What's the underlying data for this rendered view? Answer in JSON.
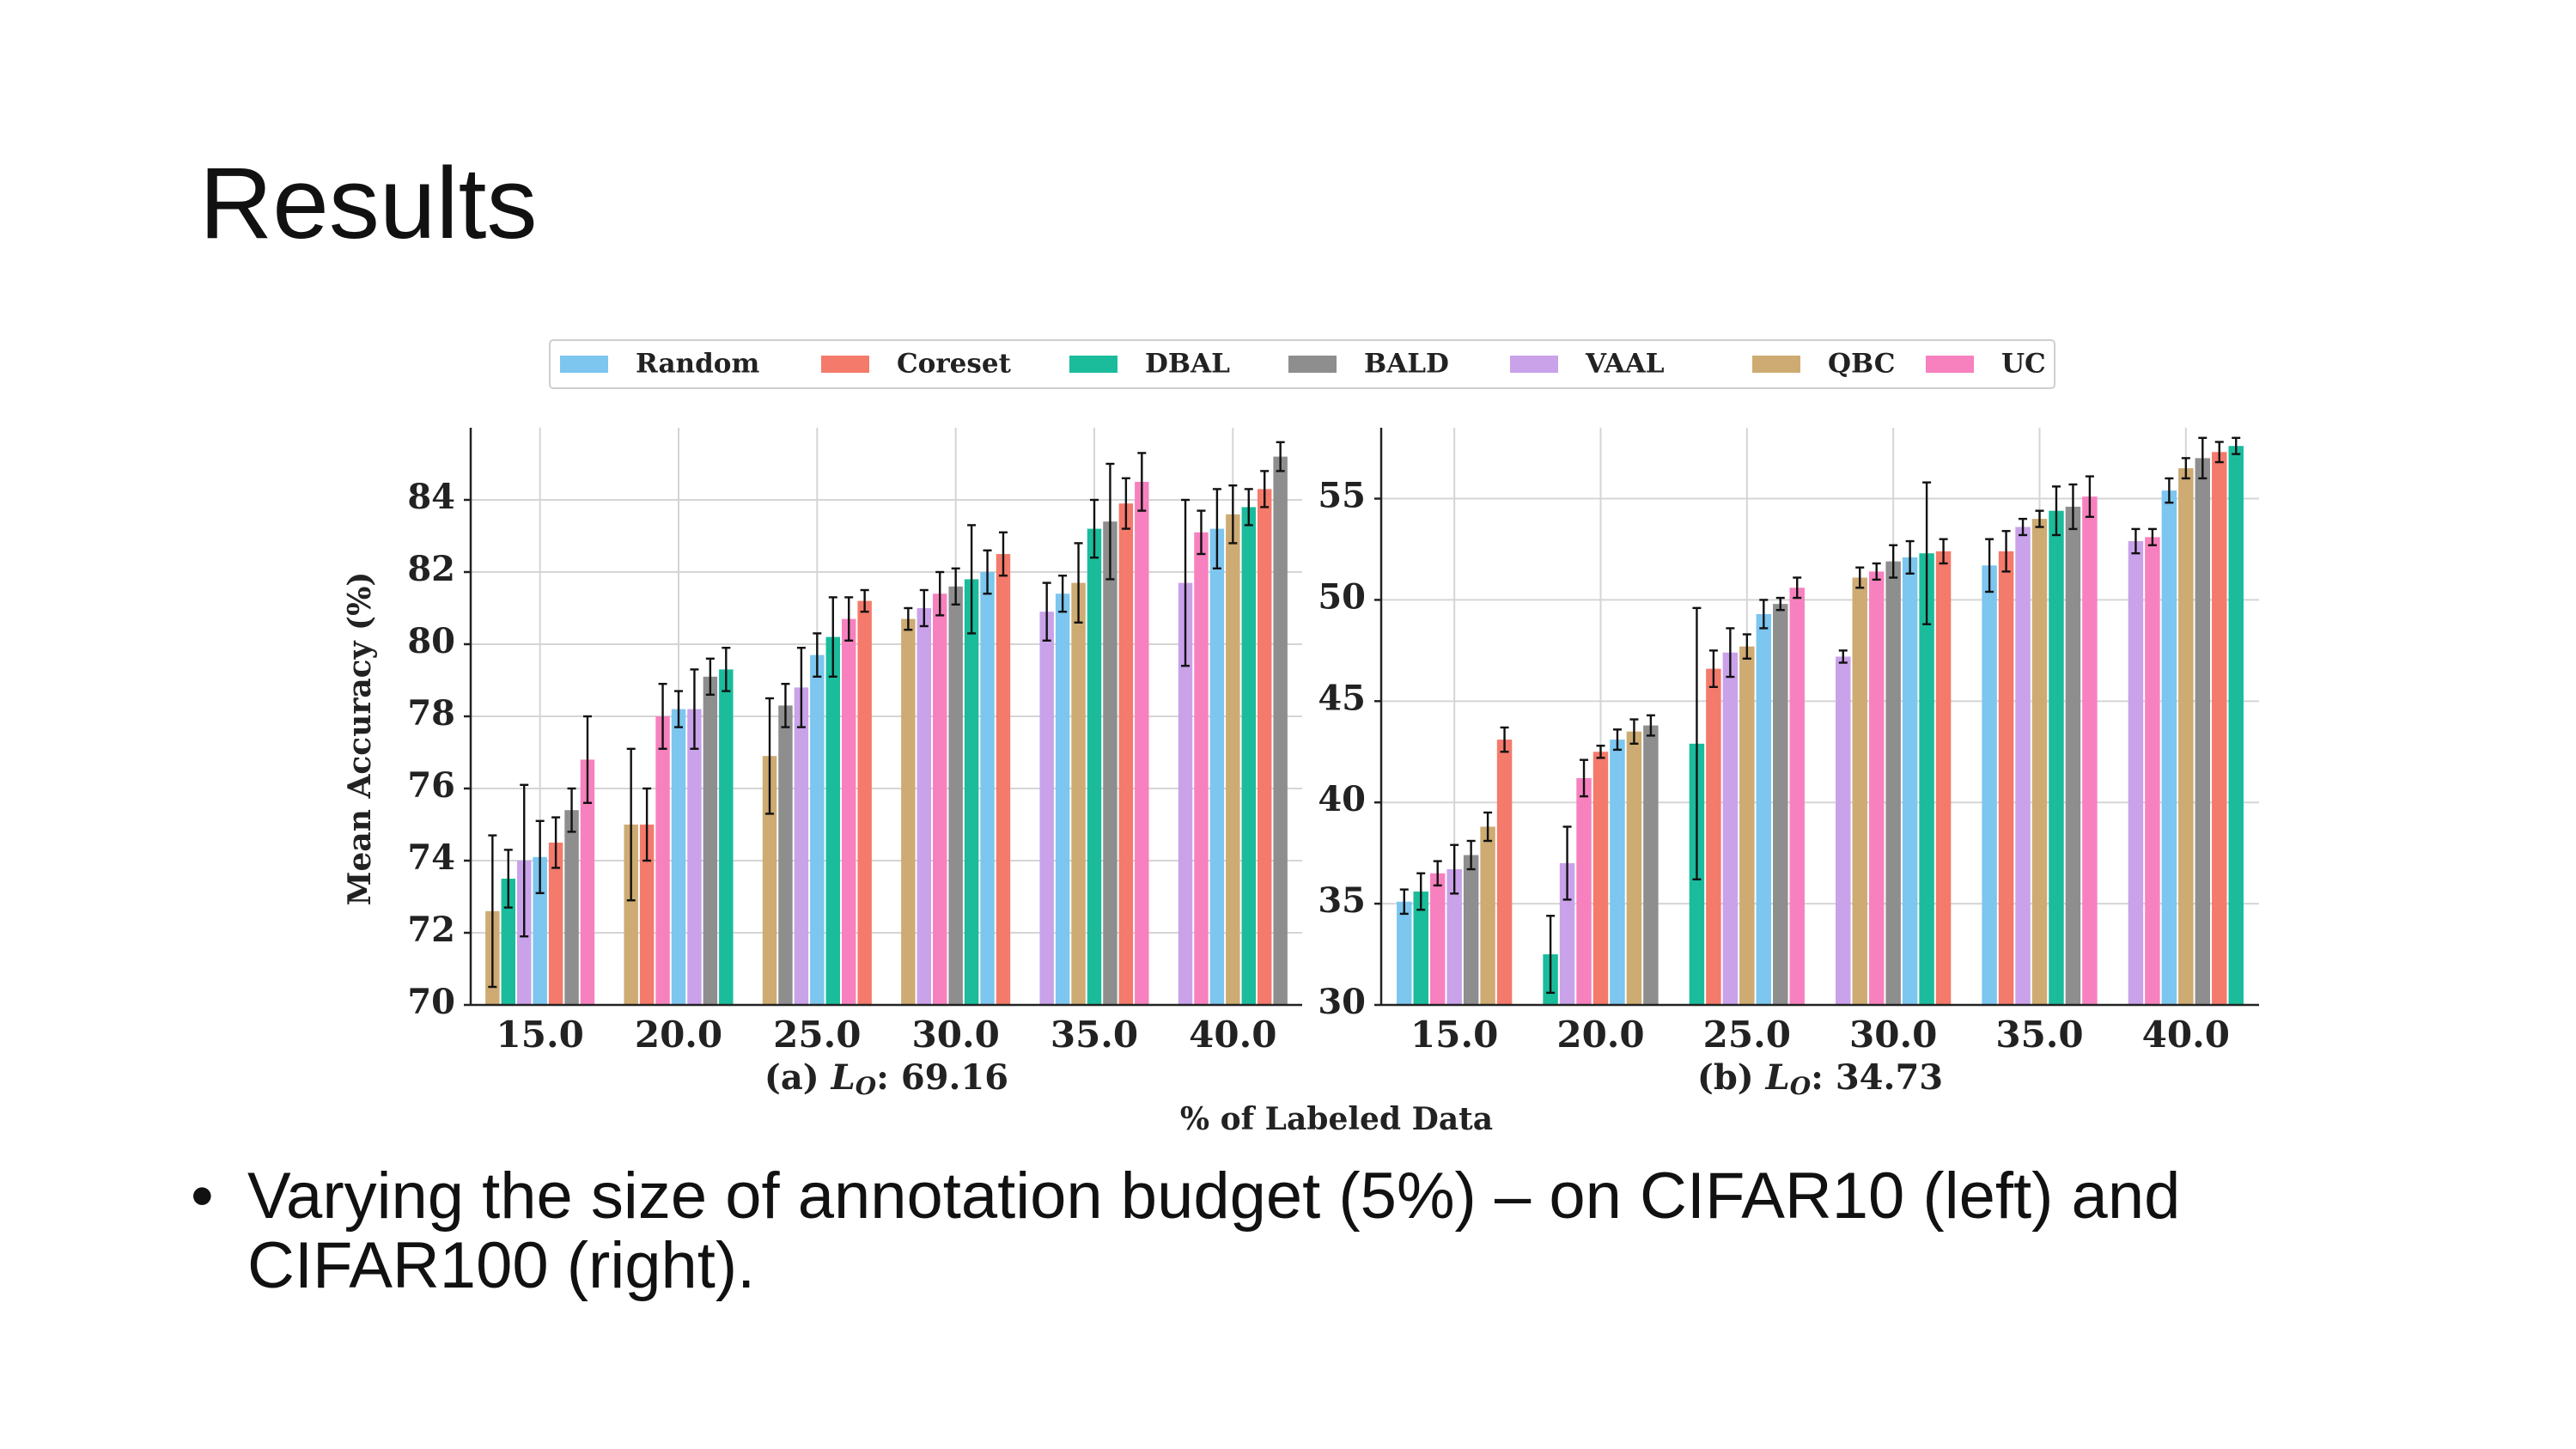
{
  "slide": {
    "title": "Results",
    "bullet": "Varying the size of annotation budget (5%) – on CIFAR10 (left) and CIFAR100 (right).",
    "bullet_symbol": "•"
  },
  "figure": {
    "shared_xlabel": "% of Labeled Data",
    "ylabel": "Mean Accuracy (%)",
    "legend": [
      {
        "name": "Random",
        "color": "#7cc6ef"
      },
      {
        "name": "Coreset",
        "color": "#f47a6b"
      },
      {
        "name": "DBAL",
        "color": "#1abc9c"
      },
      {
        "name": "BALD",
        "color": "#8e8e8e"
      },
      {
        "name": "VAAL",
        "color": "#c9a2ea"
      },
      {
        "name": "QBC",
        "color": "#cdab72"
      },
      {
        "name": "UC",
        "color": "#f781bf"
      }
    ]
  },
  "chart_data": [
    {
      "type": "bar",
      "caption": "(a) ",
      "caption_sym": "L",
      "caption_sub": "O",
      "caption_val": ": 69.16",
      "categories": [
        "15.0",
        "20.0",
        "25.0",
        "30.0",
        "35.0",
        "40.0"
      ],
      "ylim": [
        70,
        86
      ],
      "yticks": [
        70,
        72,
        74,
        76,
        78,
        80,
        82,
        84
      ],
      "grid": true,
      "groups": [
        [
          {
            "s": "QBC",
            "v": 72.6,
            "e": 2.1
          },
          {
            "s": "DBAL",
            "v": 73.5,
            "e": 0.8
          },
          {
            "s": "VAAL",
            "v": 74.0,
            "e": 2.1
          },
          {
            "s": "Random",
            "v": 74.1,
            "e": 1.0
          },
          {
            "s": "Coreset",
            "v": 74.5,
            "e": 0.7
          },
          {
            "s": "BALD",
            "v": 75.4,
            "e": 0.6
          },
          {
            "s": "UC",
            "v": 76.8,
            "e": 1.2
          }
        ],
        [
          {
            "s": "QBC",
            "v": 75.0,
            "e": 2.1
          },
          {
            "s": "Coreset",
            "v": 75.0,
            "e": 1.0
          },
          {
            "s": "UC",
            "v": 78.0,
            "e": 0.9
          },
          {
            "s": "Random",
            "v": 78.2,
            "e": 0.5
          },
          {
            "s": "VAAL",
            "v": 78.2,
            "e": 1.1
          },
          {
            "s": "BALD",
            "v": 79.1,
            "e": 0.5
          },
          {
            "s": "DBAL",
            "v": 79.3,
            "e": 0.6
          }
        ],
        [
          {
            "s": "QBC",
            "v": 76.9,
            "e": 1.6
          },
          {
            "s": "BALD",
            "v": 78.3,
            "e": 0.6
          },
          {
            "s": "VAAL",
            "v": 78.8,
            "e": 1.1
          },
          {
            "s": "Random",
            "v": 79.7,
            "e": 0.6
          },
          {
            "s": "DBAL",
            "v": 80.2,
            "e": 1.1
          },
          {
            "s": "UC",
            "v": 80.7,
            "e": 0.6
          },
          {
            "s": "Coreset",
            "v": 81.2,
            "e": 0.3
          }
        ],
        [
          {
            "s": "QBC",
            "v": 80.7,
            "e": 0.3
          },
          {
            "s": "VAAL",
            "v": 81.0,
            "e": 0.5
          },
          {
            "s": "UC",
            "v": 81.4,
            "e": 0.6
          },
          {
            "s": "BALD",
            "v": 81.6,
            "e": 0.5
          },
          {
            "s": "DBAL",
            "v": 81.8,
            "e": 1.5
          },
          {
            "s": "Random",
            "v": 82.0,
            "e": 0.6
          },
          {
            "s": "Coreset",
            "v": 82.5,
            "e": 0.6
          }
        ],
        [
          {
            "s": "VAAL",
            "v": 80.9,
            "e": 0.8
          },
          {
            "s": "Random",
            "v": 81.4,
            "e": 0.5
          },
          {
            "s": "QBC",
            "v": 81.7,
            "e": 1.1
          },
          {
            "s": "DBAL",
            "v": 83.2,
            "e": 0.8
          },
          {
            "s": "BALD",
            "v": 83.4,
            "e": 1.6
          },
          {
            "s": "Coreset",
            "v": 83.9,
            "e": 0.7
          },
          {
            "s": "UC",
            "v": 84.5,
            "e": 0.8
          }
        ],
        [
          {
            "s": "VAAL",
            "v": 81.7,
            "e": 2.3
          },
          {
            "s": "UC",
            "v": 83.1,
            "e": 0.6
          },
          {
            "s": "Random",
            "v": 83.2,
            "e": 1.1
          },
          {
            "s": "QBC",
            "v": 83.6,
            "e": 0.8
          },
          {
            "s": "DBAL",
            "v": 83.8,
            "e": 0.5
          },
          {
            "s": "Coreset",
            "v": 84.3,
            "e": 0.5
          },
          {
            "s": "BALD",
            "v": 85.2,
            "e": 0.4
          }
        ]
      ]
    },
    {
      "type": "bar",
      "caption": "(b) ",
      "caption_sym": "L",
      "caption_sub": "O",
      "caption_val": ": 34.73",
      "categories": [
        "15.0",
        "20.0",
        "25.0",
        "30.0",
        "35.0",
        "40.0"
      ],
      "ylim": [
        30,
        58.5
      ],
      "yticks": [
        30,
        35,
        40,
        45,
        50,
        55
      ],
      "grid": true,
      "groups": [
        [
          {
            "s": "Random",
            "v": 35.1,
            "e": 0.6
          },
          {
            "s": "DBAL",
            "v": 35.6,
            "e": 0.9
          },
          {
            "s": "UC",
            "v": 36.5,
            "e": 0.6
          },
          {
            "s": "VAAL",
            "v": 36.7,
            "e": 1.2
          },
          {
            "s": "BALD",
            "v": 37.4,
            "e": 0.7
          },
          {
            "s": "QBC",
            "v": 38.8,
            "e": 0.7
          },
          {
            "s": "Coreset",
            "v": 43.1,
            "e": 0.6
          }
        ],
        [
          {
            "s": "DBAL",
            "v": 32.5,
            "e": 1.9
          },
          {
            "s": "VAAL",
            "v": 37.0,
            "e": 1.8
          },
          {
            "s": "UC",
            "v": 41.2,
            "e": 0.9
          },
          {
            "s": "Coreset",
            "v": 42.5,
            "e": 0.3
          },
          {
            "s": "Random",
            "v": 43.1,
            "e": 0.5
          },
          {
            "s": "QBC",
            "v": 43.5,
            "e": 0.6
          },
          {
            "s": "BALD",
            "v": 43.8,
            "e": 0.5
          }
        ],
        [
          {
            "s": "DBAL",
            "v": 42.9,
            "e": 6.7
          },
          {
            "s": "Coreset",
            "v": 46.6,
            "e": 0.9
          },
          {
            "s": "VAAL",
            "v": 47.4,
            "e": 1.2
          },
          {
            "s": "QBC",
            "v": 47.7,
            "e": 0.6
          },
          {
            "s": "Random",
            "v": 49.3,
            "e": 0.7
          },
          {
            "s": "BALD",
            "v": 49.8,
            "e": 0.3
          },
          {
            "s": "UC",
            "v": 50.6,
            "e": 0.5
          }
        ],
        [
          {
            "s": "VAAL",
            "v": 47.2,
            "e": 0.3
          },
          {
            "s": "QBC",
            "v": 51.1,
            "e": 0.5
          },
          {
            "s": "UC",
            "v": 51.4,
            "e": 0.4
          },
          {
            "s": "BALD",
            "v": 51.9,
            "e": 0.8
          },
          {
            "s": "Random",
            "v": 52.1,
            "e": 0.8
          },
          {
            "s": "DBAL",
            "v": 52.3,
            "e": 3.5
          },
          {
            "s": "Coreset",
            "v": 52.4,
            "e": 0.6
          }
        ],
        [
          {
            "s": "Random",
            "v": 51.7,
            "e": 1.3
          },
          {
            "s": "Coreset",
            "v": 52.4,
            "e": 1.0
          },
          {
            "s": "VAAL",
            "v": 53.6,
            "e": 0.4
          },
          {
            "s": "QBC",
            "v": 54.0,
            "e": 0.4
          },
          {
            "s": "DBAL",
            "v": 54.4,
            "e": 1.2
          },
          {
            "s": "BALD",
            "v": 54.6,
            "e": 1.1
          },
          {
            "s": "UC",
            "v": 55.1,
            "e": 1.0
          }
        ],
        [
          {
            "s": "VAAL",
            "v": 52.9,
            "e": 0.6
          },
          {
            "s": "UC",
            "v": 53.1,
            "e": 0.4
          },
          {
            "s": "Random",
            "v": 55.4,
            "e": 0.6
          },
          {
            "s": "QBC",
            "v": 56.5,
            "e": 0.5
          },
          {
            "s": "BALD",
            "v": 57.0,
            "e": 1.0
          },
          {
            "s": "Coreset",
            "v": 57.3,
            "e": 0.5
          },
          {
            "s": "DBAL",
            "v": 57.6,
            "e": 0.4
          }
        ]
      ]
    }
  ]
}
